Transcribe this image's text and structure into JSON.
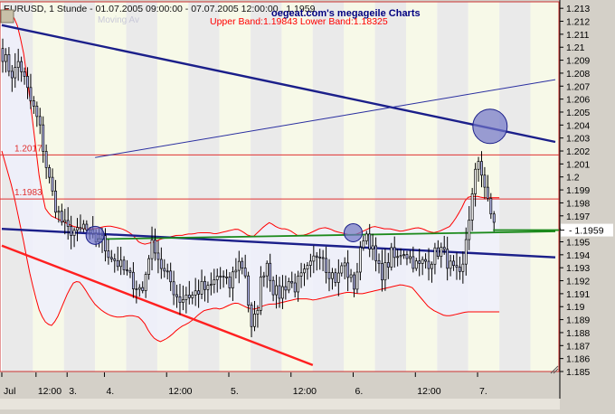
{
  "header": {
    "symbol_line": "EURUSD, 1 Stunde - 01.07.2005 09:00:00 - 07.07.2005 12:00:00 , 1.1959",
    "watermark": "oegeat.com's megageile Charts",
    "band_line": "Upper Band:1.19843 Lower Band:1.18325",
    "legend_faded": "Moving Av"
  },
  "colors": {
    "candle": "#b5b8ee",
    "candle_outline": "#000000",
    "bollinger": "#ff0000",
    "band_fill": "#eef0fb",
    "trend_main": "#1b1f8a",
    "trend_thin": "#2a2fa0",
    "support": "#ff2020",
    "hline": "#e03030",
    "ma_green": "#1c8a1c",
    "day_shade": "#e8e8e8",
    "alt_shade": "#f6f8e6"
  },
  "chart_data": {
    "type": "candlestick",
    "title": "EURUSD, 1 Stunde",
    "last_price": "1.1959",
    "ylim": [
      1.185,
      1.2135
    ],
    "y_ticks": [
      "1.213",
      "1.212",
      "1.211",
      "1.21",
      "1.209",
      "1.208",
      "1.207",
      "1.206",
      "1.205",
      "1.204",
      "1.203",
      "1.202",
      "1.201",
      "1.2",
      "1.199",
      "1.198",
      "1.197",
      "1.196",
      "1.195",
      "1.194",
      "1.193",
      "1.192",
      "1.191",
      "1.19",
      "1.189",
      "1.188",
      "1.187",
      "1.186",
      "1.185"
    ],
    "x_labels": [
      {
        "i": 0,
        "label": "Jul"
      },
      {
        "i": 11,
        "label": "12:00"
      },
      {
        "i": 21,
        "label": "3."
      },
      {
        "i": 33,
        "label": "4."
      },
      {
        "i": 53,
        "label": "12:00"
      },
      {
        "i": 73,
        "label": "5."
      },
      {
        "i": 93,
        "label": "12:00"
      },
      {
        "i": 113,
        "label": "6."
      },
      {
        "i": 133,
        "label": "12:00"
      },
      {
        "i": 153,
        "label": "7."
      }
    ],
    "h_levels": [
      {
        "value": 1.2017,
        "label": "1.2017"
      },
      {
        "value": 1.1983,
        "label": "1.1983"
      }
    ],
    "close_key": [
      1.2095,
      1.2085,
      1.2078,
      1.209,
      1.2075,
      1.206,
      1.205,
      1.2035,
      1.201,
      1.199,
      1.1975,
      1.1965,
      1.1958,
      1.196,
      1.1955,
      1.1962,
      1.1955,
      1.195,
      1.1955,
      1.1945,
      1.194,
      1.1935,
      1.193,
      1.1925,
      1.192,
      1.1915,
      1.1912,
      1.194,
      1.195,
      1.1935,
      1.1925,
      1.192,
      1.191,
      1.1905,
      1.191,
      1.1908,
      1.1912,
      1.1915,
      1.1912,
      1.1918,
      1.1925,
      1.192,
      1.1915,
      1.193,
      1.1935,
      1.1925,
      1.188,
      1.1895,
      1.1925,
      1.1935,
      1.1915,
      1.1908,
      1.1915,
      1.192,
      1.1915,
      1.192,
      1.1925,
      1.193,
      1.194,
      1.1945,
      1.193,
      1.1925,
      1.192,
      1.1935,
      1.1925,
      1.1915,
      1.1935,
      1.196,
      1.195,
      1.1935,
      1.1925,
      1.193,
      1.194,
      1.1935,
      1.1945,
      1.194,
      1.1935,
      1.193,
      1.1935,
      1.1935,
      1.194,
      1.1945,
      1.1938,
      1.193,
      1.1925,
      1.192,
      1.196,
      1.1985,
      1.2015,
      1.2,
      1.1975,
      1.1965
    ],
    "bb_upper": [
      1.2128,
      1.213,
      1.2125,
      1.2115,
      1.2095,
      1.2065,
      1.203,
      1.1995,
      1.1975,
      1.197,
      1.1968,
      1.1966,
      1.1964,
      1.1962,
      1.1961,
      1.196,
      1.196,
      1.196,
      1.1961,
      1.1962,
      1.1962,
      1.1961,
      1.196,
      1.1958,
      1.1955,
      1.195,
      1.1948,
      1.1949,
      1.195,
      1.1952,
      1.1953,
      1.1954,
      1.1955,
      1.1955,
      1.1956,
      1.1956,
      1.1957,
      1.1957,
      1.1957,
      1.1956,
      1.1957,
      1.1958,
      1.1959,
      1.196,
      1.1958,
      1.1955,
      1.1954,
      1.1958,
      1.1962,
      1.1965,
      1.1962,
      1.196,
      1.196,
      1.1958,
      1.1955,
      1.1955,
      1.1956,
      1.1958,
      1.196,
      1.1961,
      1.196,
      1.1958,
      1.1957,
      1.1956,
      1.1955,
      1.1956,
      1.1958,
      1.196,
      1.1962,
      1.1961,
      1.196,
      1.196,
      1.1959,
      1.1958,
      1.1959,
      1.196,
      1.1961,
      1.196,
      1.1958,
      1.1957,
      1.1958,
      1.196,
      1.1962,
      1.1968,
      1.1975,
      1.1984,
      1.1985,
      1.1985,
      1.1984,
      1.1984,
      1.1984,
      1.1984
    ],
    "bb_lower": [
      1.202,
      1.2005,
      1.199,
      1.197,
      1.195,
      1.1928,
      1.191,
      1.1895,
      1.1888,
      1.1885,
      1.189,
      1.19,
      1.191,
      1.1918,
      1.192,
      1.1915,
      1.1908,
      1.1902,
      1.1898,
      1.1895,
      1.1893,
      1.1892,
      1.1892,
      1.1893,
      1.1893,
      1.1892,
      1.1888,
      1.188,
      1.1875,
      1.1873,
      1.1875,
      1.1878,
      1.1882,
      1.1885,
      1.1887,
      1.189,
      1.1894,
      1.1897,
      1.1898,
      1.1899,
      1.1898,
      1.19,
      1.1902,
      1.1903,
      1.1901,
      1.1899,
      1.1898,
      1.1899,
      1.1901,
      1.1902,
      1.1902,
      1.1903,
      1.1904,
      1.1905,
      1.1906,
      1.1906,
      1.1906,
      1.1905,
      1.1906,
      1.1907,
      1.1908,
      1.1909,
      1.191,
      1.1911,
      1.1911,
      1.191,
      1.191,
      1.1911,
      1.1912,
      1.1913,
      1.1914,
      1.1915,
      1.1916,
      1.1917,
      1.1916,
      1.1915,
      1.191,
      1.1905,
      1.19,
      1.1897,
      1.1895,
      1.1893,
      1.1893,
      1.1894,
      1.1895,
      1.1896,
      1.1896,
      1.1896,
      1.1896,
      1.1896,
      1.1896,
      1.1896
    ],
    "trendlines": [
      {
        "name": "upper-resistance",
        "from": [
          0,
          1.2117
        ],
        "to": [
          178,
          1.2027
        ],
        "style": "thick",
        "color": "#1b1f8a"
      },
      {
        "name": "lower-resistance",
        "from": [
          0,
          1.196
        ],
        "to": [
          178,
          1.1938
        ],
        "style": "thick",
        "color": "#1b1f8a"
      },
      {
        "name": "thin-channel",
        "from": [
          30,
          1.2015
        ],
        "to": [
          178,
          1.2075
        ],
        "style": "thin",
        "color": "#2a2fa0"
      },
      {
        "name": "support",
        "from": [
          0,
          1.1947
        ],
        "to": [
          100,
          1.1855
        ],
        "style": "thick",
        "color": "#ff2020"
      },
      {
        "name": "green-ma",
        "from": [
          30,
          1.1952
        ],
        "to": [
          178,
          1.1958
        ],
        "style": "medium",
        "color": "#1c8a1c"
      }
    ],
    "markers": [
      {
        "i": 30,
        "value": 1.1955,
        "size": "small"
      },
      {
        "i": 113,
        "value": 1.1957,
        "size": "small"
      },
      {
        "i": 157,
        "value": 1.2039,
        "size": "large"
      }
    ]
  }
}
